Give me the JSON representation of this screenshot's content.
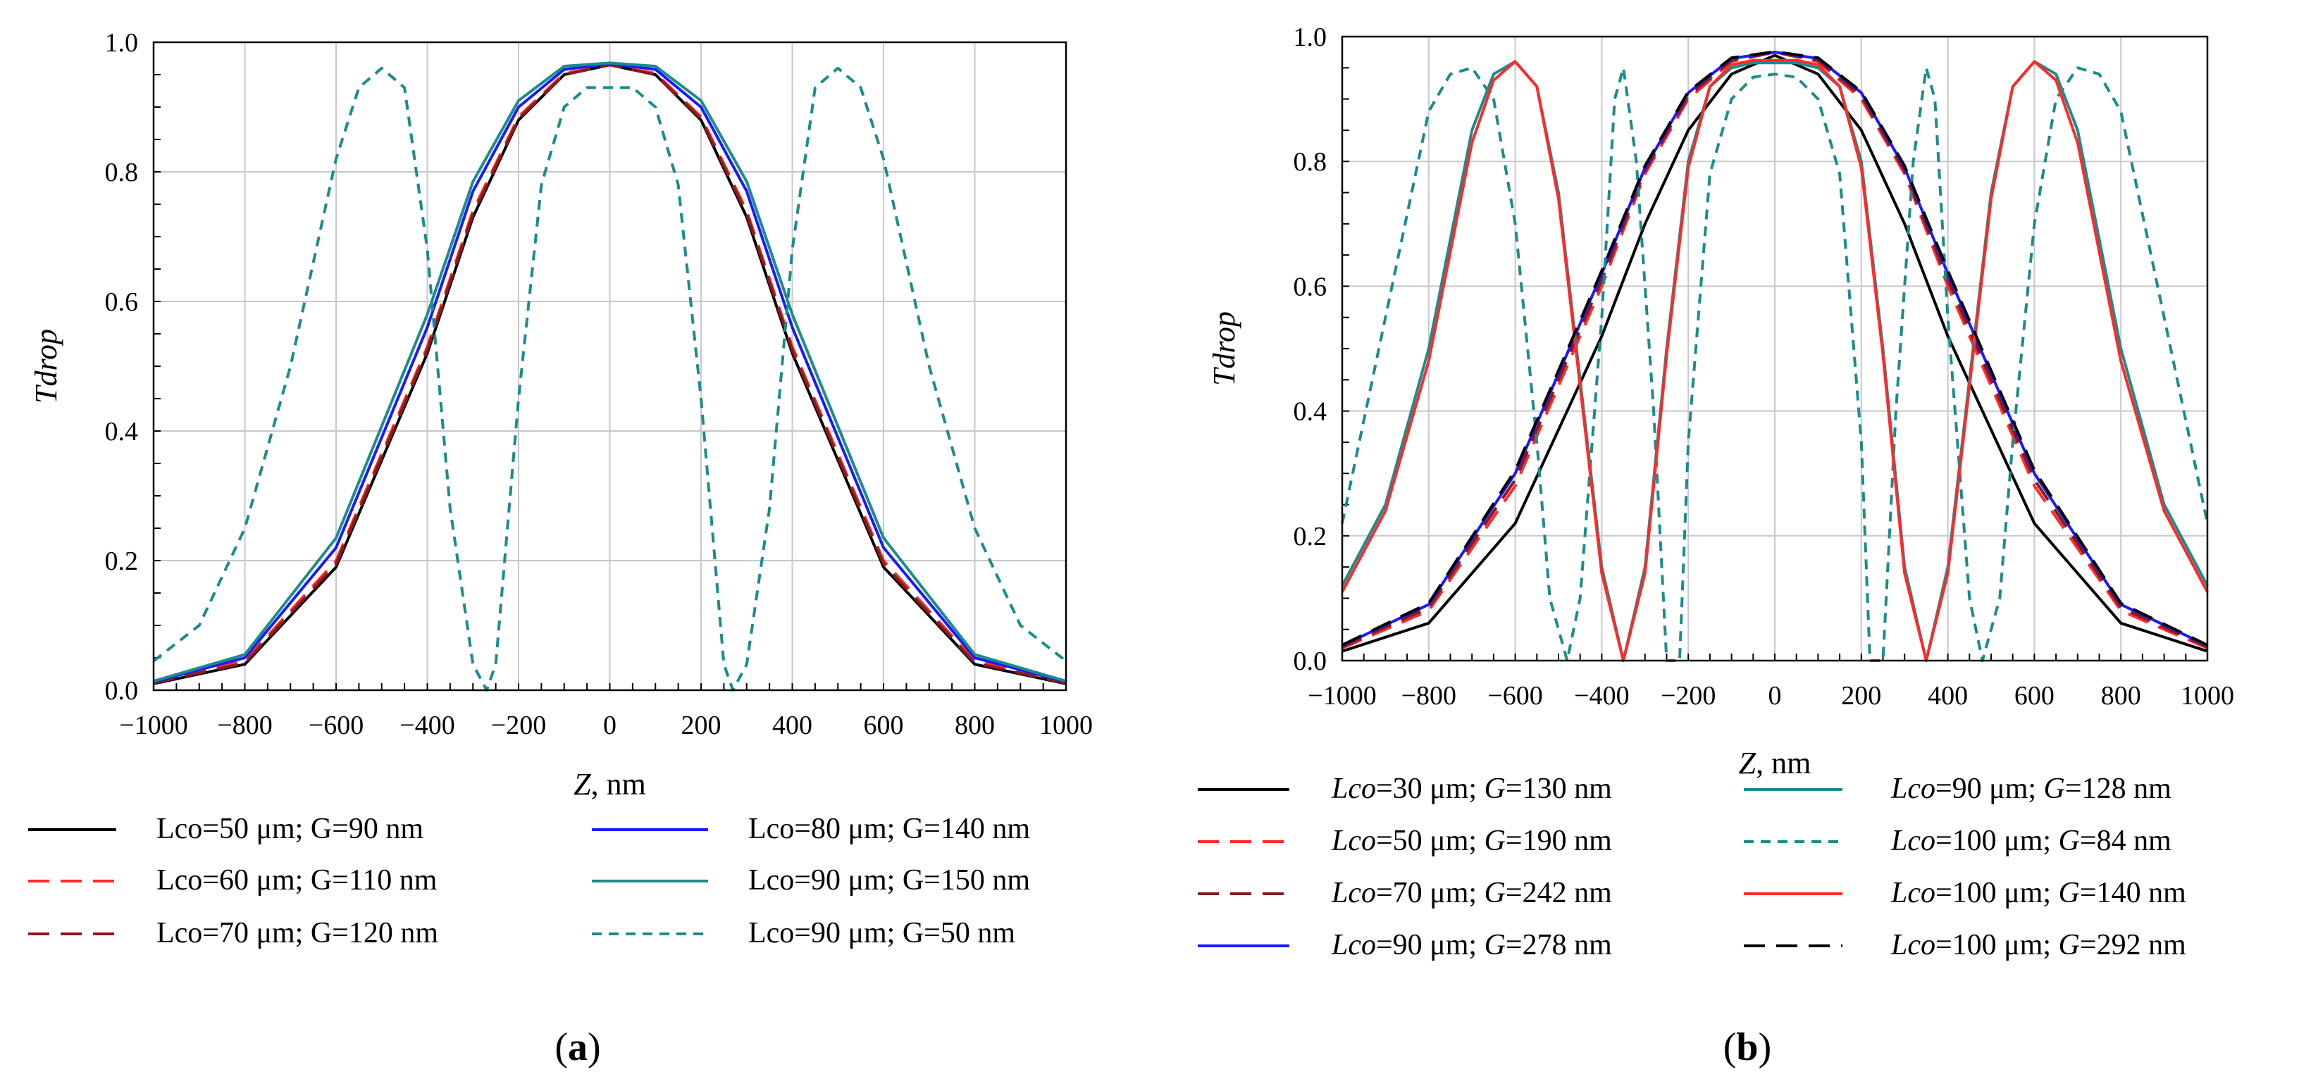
{
  "chart_data": [
    {
      "type": "line",
      "panel_label": "(a)",
      "xlabel_var": "Z",
      "xlabel_unit": ", nm",
      "ylabel": "Tdrop",
      "xlim": [
        -1000,
        1000
      ],
      "ylim": [
        0,
        1.0
      ],
      "xticks": [
        -1000,
        -800,
        -600,
        -400,
        -200,
        0,
        200,
        400,
        600,
        800,
        1000
      ],
      "yticks": [
        0.0,
        0.2,
        0.4,
        0.6,
        0.8,
        1.0
      ],
      "grid": true,
      "legend_placement": "below",
      "series": [
        {
          "name": "Lco=50 μm; G=90 nm",
          "name_parts": [
            "Lco=50 μm; G=90 nm"
          ],
          "color": "#000000",
          "dash": "solid",
          "x": [
            -1000,
            -800,
            -600,
            -400,
            -300,
            -200,
            -100,
            0,
            100,
            200,
            300,
            400,
            600,
            800,
            1000
          ],
          "y": [
            0.01,
            0.04,
            0.19,
            0.52,
            0.73,
            0.88,
            0.95,
            0.965,
            0.95,
            0.88,
            0.73,
            0.52,
            0.19,
            0.04,
            0.01
          ]
        },
        {
          "name": "Lco=60 μm; G=110 nm",
          "name_parts": [
            "Lco=60 μm; G=110 nm"
          ],
          "color": "#ff2a2a",
          "dash": "longdash",
          "x": [
            -1000,
            -800,
            -600,
            -400,
            -300,
            -200,
            -100,
            0,
            100,
            200,
            300,
            400,
            600,
            800,
            1000
          ],
          "y": [
            0.012,
            0.045,
            0.2,
            0.53,
            0.74,
            0.885,
            0.952,
            0.965,
            0.952,
            0.885,
            0.74,
            0.53,
            0.2,
            0.045,
            0.012
          ]
        },
        {
          "name": "Lco=70 μm; G=120 nm",
          "name_parts": [
            "Lco=70 μm; G=120 nm"
          ],
          "color": "#8b1a1a",
          "dash": "longdash",
          "x": [
            -1000,
            -800,
            -600,
            -400,
            -300,
            -200,
            -100,
            0,
            100,
            200,
            300,
            400,
            600,
            800,
            1000
          ],
          "y": [
            0.011,
            0.042,
            0.195,
            0.525,
            0.735,
            0.882,
            0.95,
            0.965,
            0.95,
            0.882,
            0.735,
            0.525,
            0.195,
            0.042,
            0.011
          ]
        },
        {
          "name": "Lco=80 μm; G=140 nm",
          "name_parts": [
            "Lco=80 μm; G=140 nm"
          ],
          "color": "#1a1aff",
          "dash": "solid",
          "x": [
            -1000,
            -800,
            -600,
            -400,
            -300,
            -200,
            -100,
            0,
            100,
            200,
            300,
            400,
            600,
            800,
            1000
          ],
          "y": [
            0.013,
            0.05,
            0.22,
            0.56,
            0.77,
            0.9,
            0.958,
            0.967,
            0.958,
            0.9,
            0.77,
            0.56,
            0.22,
            0.05,
            0.013
          ]
        },
        {
          "name": "Lco=90 μm; G=150 nm",
          "name_parts": [
            "Lco=90 μm; G=150 nm"
          ],
          "color": "#1a8c8c",
          "dash": "solid",
          "x": [
            -1000,
            -800,
            -600,
            -400,
            -300,
            -200,
            -100,
            0,
            100,
            200,
            300,
            400,
            600,
            800,
            1000
          ],
          "y": [
            0.014,
            0.055,
            0.235,
            0.58,
            0.785,
            0.91,
            0.963,
            0.968,
            0.963,
            0.91,
            0.785,
            0.58,
            0.235,
            0.055,
            0.014
          ]
        },
        {
          "name": "Lco=90 μm; G=50 nm",
          "name_parts": [
            "Lco=90 μm; G=50 nm"
          ],
          "color": "#1a8c8c",
          "dash": "shortdash",
          "x": [
            -1000,
            -900,
            -800,
            -700,
            -600,
            -550,
            -500,
            -450,
            -400,
            -350,
            -300,
            -270,
            -250,
            -200,
            -150,
            -100,
            -50,
            0,
            50,
            100,
            150,
            200,
            250,
            270,
            300,
            350,
            400,
            450,
            500,
            550,
            600,
            700,
            800,
            900,
            1000
          ],
          "y": [
            0.045,
            0.1,
            0.25,
            0.5,
            0.82,
            0.93,
            0.96,
            0.93,
            0.68,
            0.28,
            0.04,
            0.0,
            0.04,
            0.45,
            0.78,
            0.9,
            0.93,
            0.93,
            0.93,
            0.9,
            0.78,
            0.45,
            0.04,
            0.0,
            0.04,
            0.28,
            0.68,
            0.93,
            0.96,
            0.93,
            0.82,
            0.5,
            0.25,
            0.1,
            0.045
          ]
        }
      ]
    },
    {
      "type": "line",
      "panel_label": "(b)",
      "xlabel_var": "Z",
      "xlabel_unit": ", nm",
      "ylabel": "Tdrop",
      "xlim": [
        -1000,
        1000
      ],
      "ylim": [
        0,
        1.0
      ],
      "xticks": [
        -1000,
        -800,
        -600,
        -400,
        -200,
        0,
        200,
        400,
        600,
        800,
        1000
      ],
      "yticks": [
        0.0,
        0.2,
        0.4,
        0.6,
        0.8,
        1.0
      ],
      "grid": true,
      "legend_placement": "below",
      "series": [
        {
          "name": "Lco=30 μm; G=130 nm",
          "name_parts": [
            "Lco",
            "=30 μm; ",
            "G",
            "=130 nm"
          ],
          "color": "#000000",
          "dash": "solid",
          "x": [
            -1000,
            -800,
            -600,
            -400,
            -300,
            -200,
            -100,
            0,
            100,
            200,
            300,
            400,
            600,
            800,
            1000
          ],
          "y": [
            0.015,
            0.06,
            0.22,
            0.52,
            0.7,
            0.85,
            0.94,
            0.97,
            0.94,
            0.85,
            0.7,
            0.52,
            0.22,
            0.06,
            0.015
          ]
        },
        {
          "name": "Lco=50 μm; G=190 nm",
          "name_parts": [
            "Lco",
            "=50 μm; ",
            "G",
            "=190 nm"
          ],
          "color": "#ff2a2a",
          "dash": "longdash",
          "x": [
            -1000,
            -800,
            -600,
            -400,
            -300,
            -200,
            -100,
            0,
            100,
            200,
            300,
            400,
            600,
            800,
            1000
          ],
          "y": [
            0.02,
            0.08,
            0.28,
            0.6,
            0.78,
            0.9,
            0.96,
            0.975,
            0.96,
            0.9,
            0.78,
            0.6,
            0.28,
            0.08,
            0.02
          ]
        },
        {
          "name": "Lco=70 μm; G=242 nm",
          "name_parts": [
            "Lco",
            "=70 μm; ",
            "G",
            "=242 nm"
          ],
          "color": "#8b1a1a",
          "dash": "longdash",
          "x": [
            -1000,
            -800,
            -600,
            -400,
            -300,
            -200,
            -100,
            0,
            100,
            200,
            300,
            400,
            600,
            800,
            1000
          ],
          "y": [
            0.022,
            0.085,
            0.29,
            0.61,
            0.785,
            0.905,
            0.962,
            0.975,
            0.962,
            0.905,
            0.785,
            0.61,
            0.29,
            0.085,
            0.022
          ]
        },
        {
          "name": "Lco=90 μm; G=278 nm",
          "name_parts": [
            "Lco",
            "=90 μm; ",
            "G",
            "=278 nm"
          ],
          "color": "#1a1aff",
          "dash": "solid",
          "x": [
            -1000,
            -800,
            -600,
            -400,
            -300,
            -200,
            -100,
            0,
            100,
            200,
            300,
            400,
            600,
            800,
            1000
          ],
          "y": [
            0.024,
            0.09,
            0.3,
            0.62,
            0.79,
            0.91,
            0.965,
            0.975,
            0.965,
            0.91,
            0.79,
            0.62,
            0.3,
            0.09,
            0.024
          ]
        },
        {
          "name": "Lco=90 μm; G=128 nm",
          "name_parts": [
            "Lco",
            "=90 μm; ",
            "G",
            "=128 nm"
          ],
          "color": "#1a8c8c",
          "dash": "solid",
          "x": [
            -1000,
            -900,
            -800,
            -700,
            -650,
            -600,
            -550,
            -500,
            -450,
            -400,
            -350,
            -300,
            -250,
            -200,
            -150,
            -100,
            -50,
            0,
            50,
            100,
            150,
            200,
            250,
            300,
            350,
            400,
            450,
            500,
            550,
            600,
            650,
            700,
            800,
            900,
            1000
          ],
          "y": [
            0.12,
            0.25,
            0.5,
            0.85,
            0.94,
            0.96,
            0.92,
            0.75,
            0.45,
            0.15,
            0.0,
            0.15,
            0.5,
            0.8,
            0.92,
            0.95,
            0.958,
            0.958,
            0.958,
            0.95,
            0.92,
            0.8,
            0.5,
            0.15,
            0.0,
            0.15,
            0.45,
            0.75,
            0.92,
            0.96,
            0.94,
            0.85,
            0.5,
            0.25,
            0.12
          ]
        },
        {
          "name": "Lco=100 μm; G=84 nm",
          "name_parts": [
            "Lco",
            "=100 μm; ",
            "G",
            "=84 nm"
          ],
          "color": "#1a8c8c",
          "dash": "shortdash",
          "x": [
            -1000,
            -900,
            -800,
            -750,
            -700,
            -650,
            -600,
            -550,
            -520,
            -480,
            -450,
            -400,
            -370,
            -350,
            -320,
            -280,
            -250,
            -220,
            -200,
            -150,
            -100,
            -50,
            0,
            50,
            100,
            150,
            200,
            220,
            250,
            280,
            320,
            350,
            370,
            400,
            450,
            480,
            520,
            550,
            600,
            650,
            700,
            750,
            800,
            900,
            1000
          ],
          "y": [
            0.22,
            0.55,
            0.88,
            0.94,
            0.95,
            0.9,
            0.7,
            0.35,
            0.1,
            0.0,
            0.1,
            0.55,
            0.9,
            0.95,
            0.8,
            0.4,
            0.0,
            0.0,
            0.35,
            0.78,
            0.9,
            0.935,
            0.94,
            0.935,
            0.9,
            0.78,
            0.35,
            0.0,
            0.0,
            0.4,
            0.8,
            0.95,
            0.9,
            0.55,
            0.1,
            0.0,
            0.1,
            0.35,
            0.7,
            0.9,
            0.95,
            0.94,
            0.88,
            0.55,
            0.22
          ]
        },
        {
          "name": "Lco=100 μm; G=140 nm",
          "name_parts": [
            "Lco",
            "=100 μm; ",
            "G",
            "=140 nm"
          ],
          "color": "#ff2a2a",
          "dash": "solid",
          "x": [
            -1000,
            -900,
            -800,
            -700,
            -650,
            -600,
            -550,
            -500,
            -450,
            -400,
            -350,
            -300,
            -250,
            -200,
            -150,
            -100,
            -50,
            0,
            50,
            100,
            150,
            200,
            250,
            300,
            350,
            400,
            450,
            500,
            550,
            600,
            650,
            700,
            800,
            900,
            1000
          ],
          "y": [
            0.11,
            0.24,
            0.48,
            0.83,
            0.93,
            0.96,
            0.92,
            0.74,
            0.44,
            0.14,
            0.0,
            0.14,
            0.49,
            0.79,
            0.92,
            0.955,
            0.962,
            0.962,
            0.962,
            0.955,
            0.92,
            0.79,
            0.49,
            0.14,
            0.0,
            0.14,
            0.44,
            0.74,
            0.92,
            0.96,
            0.93,
            0.83,
            0.48,
            0.24,
            0.11
          ]
        },
        {
          "name": "Lco=100 μm; G=292 nm",
          "name_parts": [
            "Lco",
            "=100 μm; ",
            "G",
            "=292 nm"
          ],
          "color": "#000000",
          "dash": "longdash",
          "x": [
            -1000,
            -800,
            -600,
            -400,
            -300,
            -200,
            -100,
            0,
            100,
            200,
            300,
            400,
            600,
            800,
            1000
          ],
          "y": [
            0.025,
            0.092,
            0.305,
            0.625,
            0.793,
            0.912,
            0.966,
            0.976,
            0.966,
            0.912,
            0.793,
            0.625,
            0.305,
            0.092,
            0.025
          ]
        }
      ]
    }
  ]
}
